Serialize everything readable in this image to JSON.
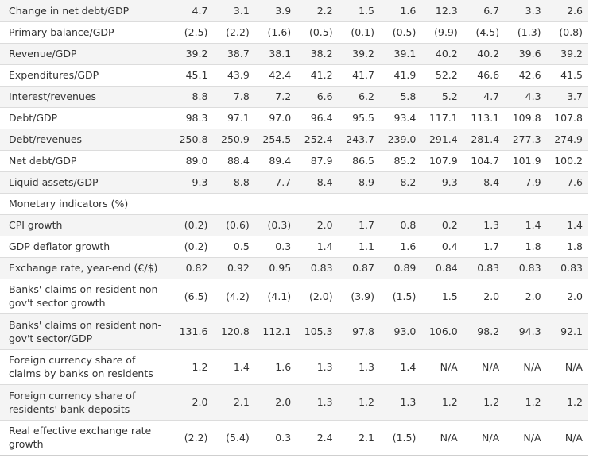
{
  "rows": [
    {
      "label": "Change in net debt/GDP",
      "values": [
        "4.7",
        "3.1",
        "3.9",
        "2.2",
        "1.5",
        "1.6",
        "12.3",
        "6.7",
        "3.3",
        "2.6"
      ]
    },
    {
      "label": "Primary balance/GDP",
      "values": [
        "(2.5)",
        "(2.2)",
        "(1.6)",
        "(0.5)",
        "(0.1)",
        "(0.5)",
        "(9.9)",
        "(4.5)",
        "(1.3)",
        "(0.8)"
      ]
    },
    {
      "label": "Revenue/GDP",
      "values": [
        "39.2",
        "38.7",
        "38.1",
        "38.2",
        "39.2",
        "39.1",
        "40.2",
        "40.2",
        "39.6",
        "39.2"
      ]
    },
    {
      "label": "Expenditures/GDP",
      "values": [
        "45.1",
        "43.9",
        "42.4",
        "41.2",
        "41.7",
        "41.9",
        "52.2",
        "46.6",
        "42.6",
        "41.5"
      ]
    },
    {
      "label": "Interest/revenues",
      "values": [
        "8.8",
        "7.8",
        "7.2",
        "6.6",
        "6.2",
        "5.8",
        "5.2",
        "4.7",
        "4.3",
        "3.7"
      ]
    },
    {
      "label": "Debt/GDP",
      "values": [
        "98.3",
        "97.1",
        "97.0",
        "96.4",
        "95.5",
        "93.4",
        "117.1",
        "113.1",
        "109.8",
        "107.8"
      ]
    },
    {
      "label": "Debt/revenues",
      "values": [
        "250.8",
        "250.9",
        "254.5",
        "252.4",
        "243.7",
        "239.0",
        "291.4",
        "281.4",
        "277.3",
        "274.9"
      ]
    },
    {
      "label": "Net debt/GDP",
      "values": [
        "89.0",
        "88.4",
        "89.4",
        "87.9",
        "86.5",
        "85.2",
        "107.9",
        "104.7",
        "101.9",
        "100.2"
      ]
    },
    {
      "label": "Liquid assets/GDP",
      "values": [
        "9.3",
        "8.8",
        "7.7",
        "8.4",
        "8.9",
        "8.2",
        "9.3",
        "8.4",
        "7.9",
        "7.6"
      ]
    },
    {
      "label": "Monetary indicators (%)",
      "values": [
        "",
        "",
        "",
        "",
        "",
        "",
        "",
        "",
        "",
        ""
      ]
    },
    {
      "label": "CPI growth",
      "values": [
        "(0.2)",
        "(0.6)",
        "(0.3)",
        "2.0",
        "1.7",
        "0.8",
        "0.2",
        "1.3",
        "1.4",
        "1.4"
      ]
    },
    {
      "label": "GDP deflator growth",
      "values": [
        "(0.2)",
        "0.5",
        "0.3",
        "1.4",
        "1.1",
        "1.6",
        "0.4",
        "1.7",
        "1.8",
        "1.8"
      ]
    },
    {
      "label": "Exchange rate, year-end (€/$)",
      "values": [
        "0.82",
        "0.92",
        "0.95",
        "0.83",
        "0.87",
        "0.89",
        "0.84",
        "0.83",
        "0.83",
        "0.83"
      ]
    },
    {
      "label": "Banks' claims on resident non-gov't sector growth",
      "values": [
        "(6.5)",
        "(4.2)",
        "(4.1)",
        "(2.0)",
        "(3.9)",
        "(1.5)",
        "1.5",
        "2.0",
        "2.0",
        "2.0"
      ]
    },
    {
      "label": "Banks' claims on resident non-gov't sector/GDP",
      "values": [
        "131.6",
        "120.8",
        "112.1",
        "105.3",
        "97.8",
        "93.0",
        "106.0",
        "98.2",
        "94.3",
        "92.1"
      ]
    },
    {
      "label": "Foreign currency share of claims by banks on residents",
      "values": [
        "1.2",
        "1.4",
        "1.6",
        "1.3",
        "1.3",
        "1.4",
        "N/A",
        "N/A",
        "N/A",
        "N/A"
      ]
    },
    {
      "label": "Foreign currency share of residents' bank deposits",
      "values": [
        "2.0",
        "2.1",
        "2.0",
        "1.3",
        "1.2",
        "1.3",
        "1.2",
        "1.2",
        "1.2",
        "1.2"
      ]
    },
    {
      "label": "Real effective exchange rate growth",
      "values": [
        "(2.2)",
        "(5.4)",
        "0.3",
        "2.4",
        "2.1",
        "(1.5)",
        "N/A",
        "N/A",
        "N/A",
        "N/A"
      ]
    }
  ]
}
